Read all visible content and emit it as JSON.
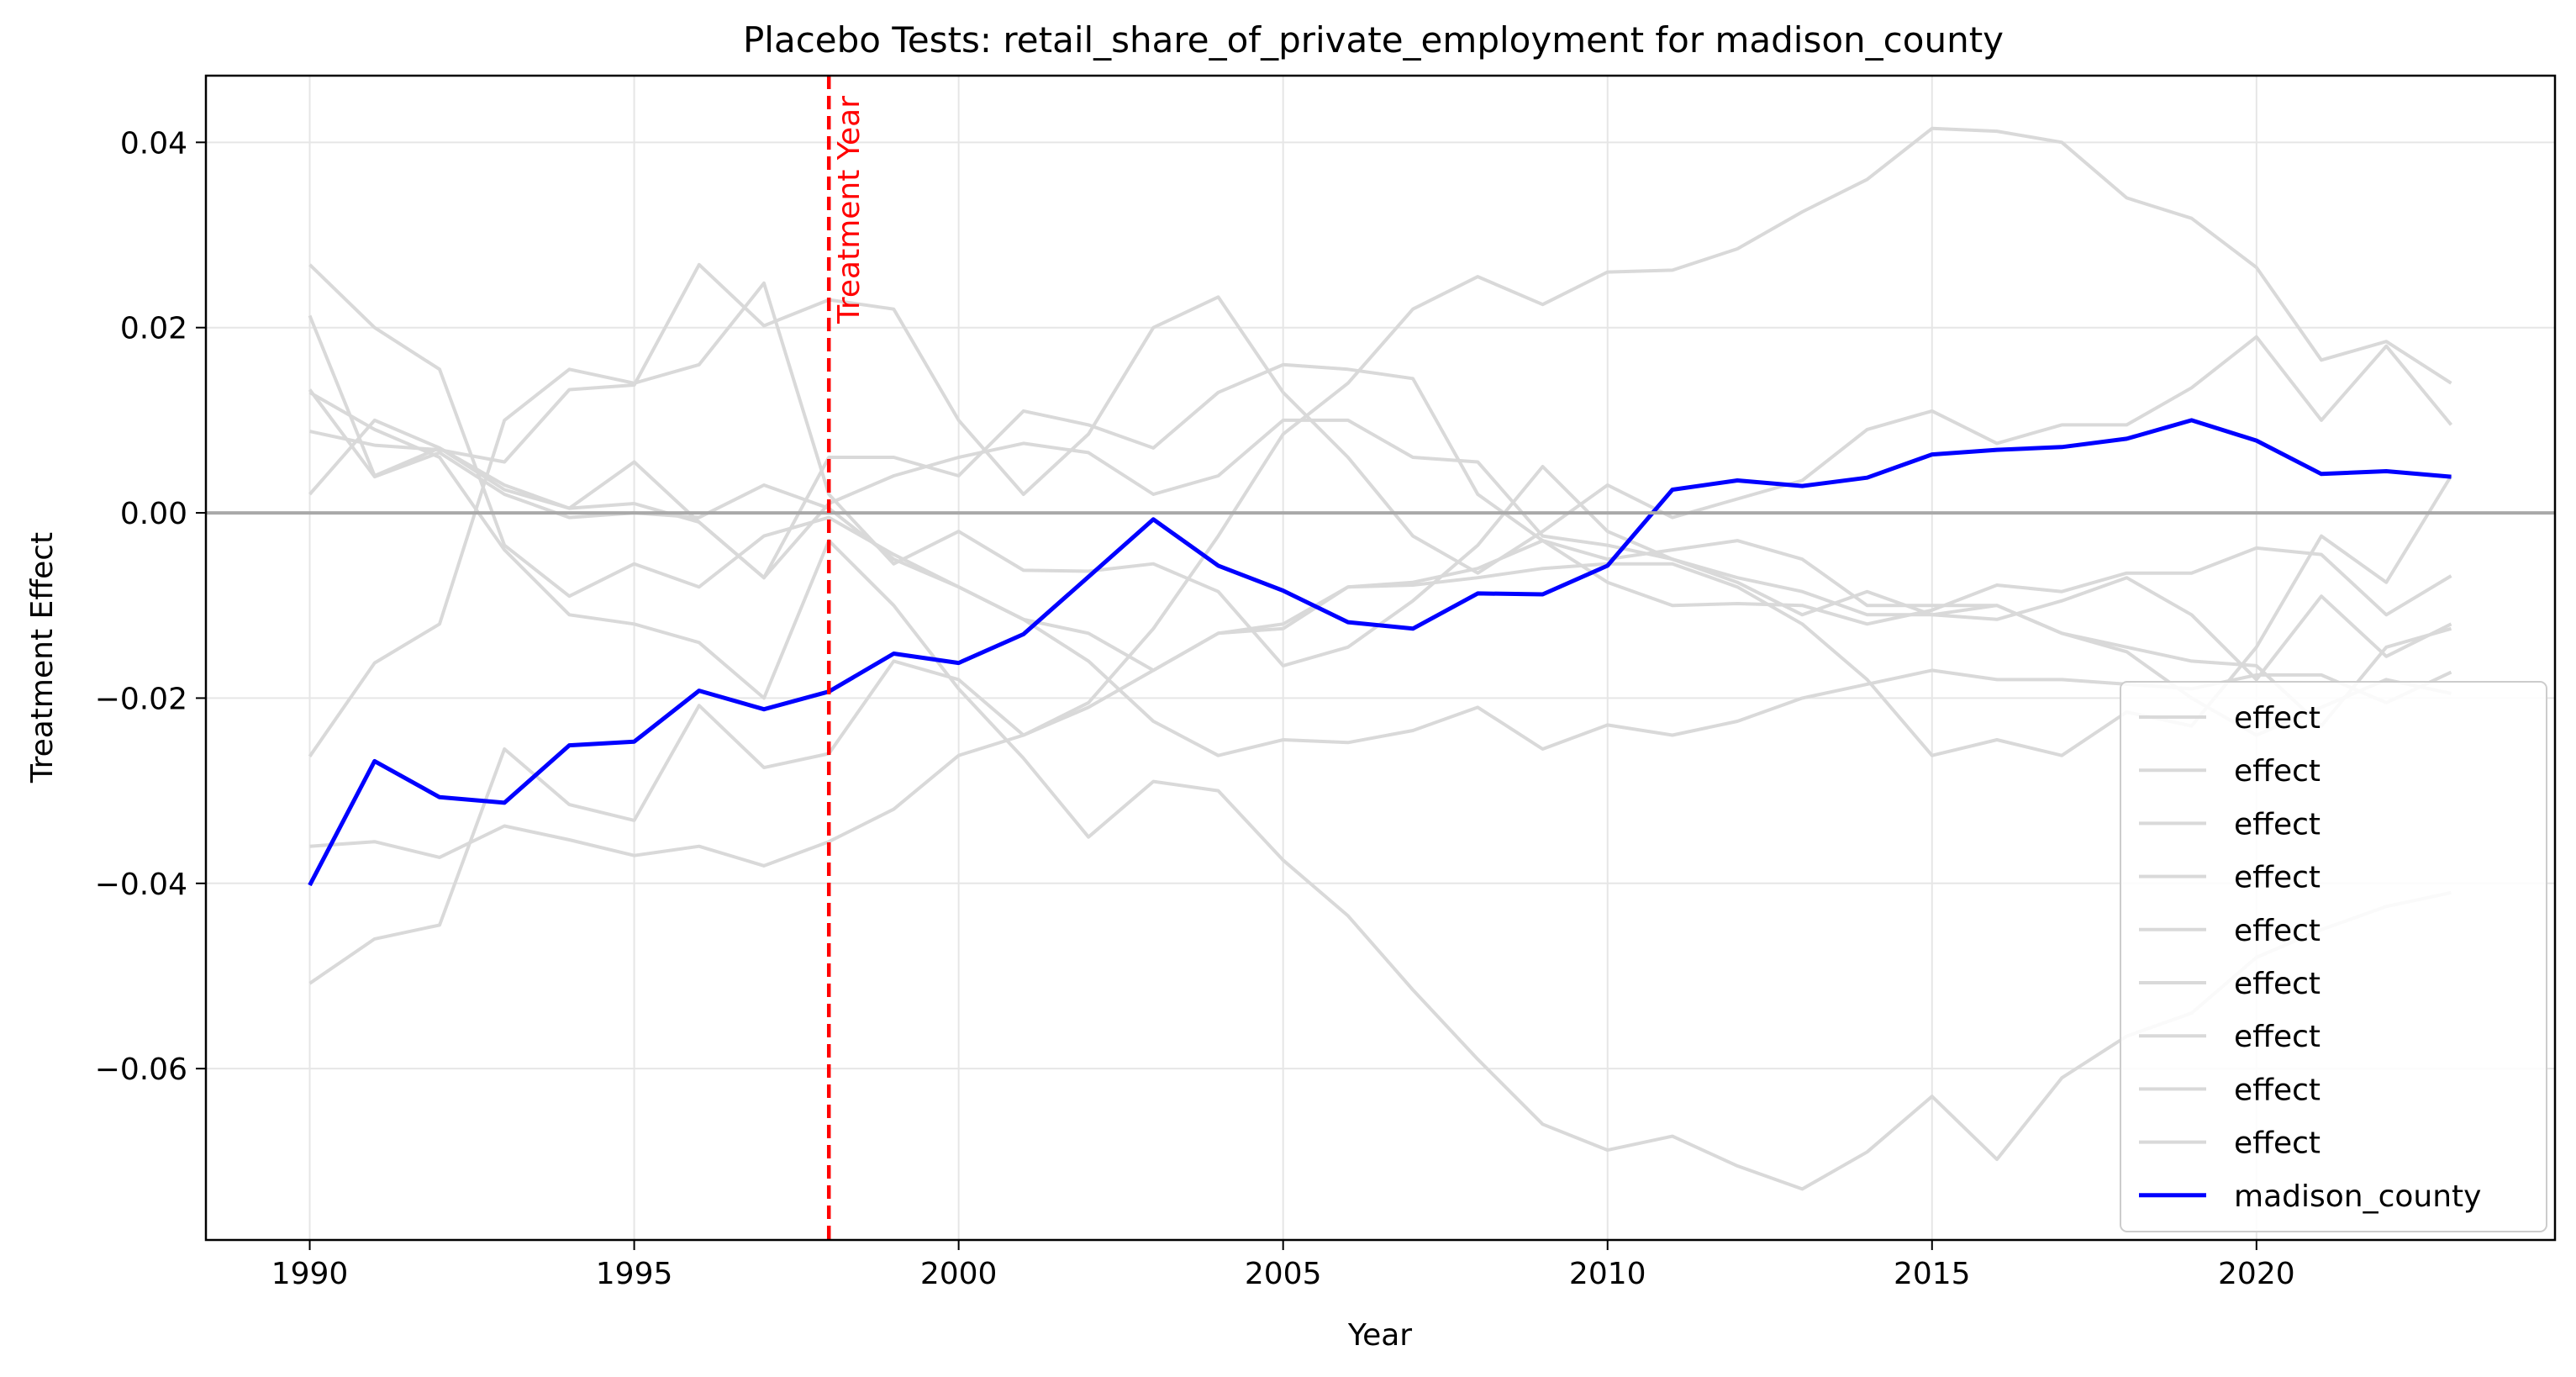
{
  "chart_data": {
    "type": "line",
    "title": "Placebo Tests: retail_share_of_private_employment for madison_county",
    "xlabel": "Year",
    "ylabel": "Treatment Effect",
    "xlim": [
      1988.4,
      2024.6
    ],
    "ylim": [
      -0.0785,
      0.0472
    ],
    "x_ticks": [
      1990,
      1995,
      2000,
      2005,
      2010,
      2015,
      2020
    ],
    "x_tick_labels": [
      "1990",
      "1995",
      "2000",
      "2005",
      "2010",
      "2015",
      "2020"
    ],
    "y_ticks": [
      0.04,
      0.02,
      0.0,
      -0.02,
      -0.04,
      -0.06
    ],
    "y_tick_labels": [
      "0.04",
      "0.02",
      "0.00",
      "−0.02",
      "−0.04",
      "−0.06"
    ],
    "grid": true,
    "legend_position": "lower-right",
    "zero_line": {
      "y": 0,
      "color": "#a9a9a9"
    },
    "treatment_line": {
      "x": 1998,
      "label": "Treatment Year",
      "color": "#ff0000"
    },
    "x": [
      1990,
      1991,
      1992,
      1993,
      1994,
      1995,
      1996,
      1997,
      1998,
      1999,
      2000,
      2001,
      2002,
      2003,
      2004,
      2005,
      2006,
      2007,
      2008,
      2009,
      2010,
      2011,
      2012,
      2013,
      2014,
      2015,
      2016,
      2017,
      2018,
      2019,
      2020,
      2021,
      2022,
      2023
    ],
    "series": [
      {
        "name": "effect",
        "color": "#d9d9d9",
        "values": [
          0.0133,
          0.0039,
          0.0065,
          0.002,
          -0.0005,
          0.0,
          -0.0005,
          0.003,
          0.0005,
          -0.005,
          -0.008,
          -0.0115,
          -0.016,
          -0.0225,
          -0.0262,
          -0.0245,
          -0.0248,
          -0.0235,
          -0.021,
          -0.0255,
          -0.0229,
          -0.024,
          -0.0225,
          -0.02,
          -0.0185,
          -0.017,
          -0.018,
          -0.018,
          -0.0185,
          -0.019,
          -0.0175,
          -0.0175,
          -0.0205,
          -0.0172
        ]
      },
      {
        "name": "effect",
        "color": "#d9d9d9",
        "values": [
          0.0268,
          0.02,
          0.0155,
          -0.0035,
          -0.009,
          -0.0055,
          -0.008,
          -0.0025,
          -0.0005,
          -0.0045,
          -0.008,
          -0.0115,
          -0.013,
          -0.017,
          -0.013,
          -0.012,
          -0.008,
          -0.0075,
          -0.006,
          -0.003,
          -0.0075,
          -0.01,
          -0.0098,
          -0.01,
          -0.012,
          -0.0105,
          -0.0078,
          -0.0085,
          -0.0065,
          -0.0065,
          -0.0038,
          -0.0045,
          -0.011,
          -0.0068
        ]
      },
      {
        "name": "effect",
        "color": "#d9d9d9",
        "values": [
          0.0213,
          0.004,
          0.007,
          0.003,
          0.0005,
          0.001,
          -0.001,
          -0.007,
          0.001,
          0.004,
          0.006,
          0.0075,
          0.0065,
          0.002,
          0.004,
          0.01,
          0.01,
          0.006,
          0.0055,
          -0.0025,
          -0.0035,
          -0.005,
          -0.007,
          -0.0085,
          -0.011,
          -0.011,
          -0.01,
          -0.013,
          -0.0145,
          -0.016,
          -0.0165,
          -0.023,
          -0.0145,
          -0.0125
        ]
      },
      {
        "name": "effect",
        "color": "#d9d9d9",
        "values": [
          -0.0263,
          -0.0162,
          -0.012,
          0.01,
          0.0155,
          0.014,
          0.016,
          0.0248,
          0.002,
          -0.0055,
          -0.002,
          -0.0062,
          -0.0063,
          -0.0055,
          -0.0085,
          -0.0165,
          -0.0145,
          -0.0095,
          -0.0035,
          0.005,
          -0.002,
          -0.005,
          -0.0075,
          -0.011,
          -0.0085,
          -0.011,
          -0.0115,
          -0.0095,
          -0.007,
          -0.011,
          -0.018,
          -0.009,
          -0.0155,
          -0.012
        ]
      },
      {
        "name": "effect",
        "color": "#d9d9d9",
        "values": [
          0.0088,
          0.0073,
          0.0068,
          0.0055,
          0.0133,
          0.0138,
          0.0268,
          0.0202,
          0.023,
          0.022,
          0.01,
          0.002,
          0.0085,
          0.02,
          0.0233,
          0.013,
          0.006,
          -0.0025,
          -0.0065,
          -0.002,
          0.003,
          -0.0005,
          0.0015,
          0.0035,
          0.009,
          0.011,
          0.0075,
          0.0095,
          0.0095,
          0.0135,
          0.019,
          0.01,
          0.018,
          0.0095
        ]
      },
      {
        "name": "effect",
        "color": "#d9d9d9",
        "values": [
          -0.036,
          -0.0355,
          -0.0372,
          -0.0338,
          -0.0353,
          -0.037,
          -0.036,
          -0.0381,
          -0.0355,
          -0.032,
          -0.0262,
          -0.024,
          -0.021,
          -0.017,
          -0.013,
          -0.0125,
          -0.008,
          -0.0078,
          -0.007,
          -0.006,
          -0.0055,
          -0.0055,
          -0.008,
          -0.012,
          -0.018,
          -0.0262,
          -0.0245,
          -0.0262,
          -0.0215,
          -0.023,
          -0.0145,
          -0.0025,
          -0.0075,
          0.004
        ]
      },
      {
        "name": "effect",
        "color": "#d9d9d9",
        "values": [
          0.002,
          0.01,
          0.007,
          0.0025,
          0.0005,
          0.0055,
          -0.001,
          -0.007,
          0.006,
          0.006,
          0.004,
          0.011,
          0.0095,
          0.007,
          0.013,
          0.016,
          0.0155,
          0.0145,
          0.002,
          -0.003,
          -0.005,
          -0.004,
          -0.003,
          -0.005,
          -0.01,
          -0.01,
          -0.01,
          -0.013,
          -0.015,
          -0.02,
          -0.024,
          -0.021,
          -0.018,
          -0.0195
        ]
      },
      {
        "name": "effect",
        "color": "#d9d9d9",
        "values": [
          0.013,
          0.009,
          0.006,
          -0.004,
          -0.011,
          -0.012,
          -0.014,
          -0.02,
          -0.003,
          -0.01,
          -0.019,
          -0.0265,
          -0.035,
          -0.029,
          -0.03,
          -0.0375,
          -0.0435,
          -0.0515,
          -0.059,
          -0.066,
          -0.0688,
          -0.0673,
          -0.0705,
          -0.073,
          -0.069,
          -0.063,
          -0.0698,
          -0.061,
          -0.0565,
          -0.054,
          -0.048,
          -0.045,
          -0.0425,
          -0.041
        ]
      },
      {
        "name": "effect",
        "color": "#d9d9d9",
        "values": [
          -0.0508,
          -0.046,
          -0.0445,
          -0.0255,
          -0.0315,
          -0.0332,
          -0.0208,
          -0.0275,
          -0.026,
          -0.016,
          -0.018,
          -0.024,
          -0.0205,
          -0.0125,
          -0.0025,
          0.0085,
          0.014,
          0.022,
          0.0255,
          0.0225,
          0.026,
          0.0262,
          0.0285,
          0.0325,
          0.036,
          0.0415,
          0.0412,
          0.04,
          0.034,
          0.0318,
          0.0265,
          0.0165,
          0.0185,
          0.014
        ]
      },
      {
        "name": "madison_county",
        "color": "#0000ff",
        "values": [
          -0.0402,
          -0.0268,
          -0.0307,
          -0.0313,
          -0.0251,
          -0.0247,
          -0.0192,
          -0.0212,
          -0.0193,
          -0.0152,
          -0.0162,
          -0.0131,
          -0.0069,
          -0.0007,
          -0.0057,
          -0.0084,
          -0.0118,
          -0.0125,
          -0.0087,
          -0.0088,
          -0.0057,
          0.0025,
          0.0035,
          0.0029,
          0.0038,
          0.0063,
          0.0068,
          0.0071,
          0.008,
          0.01,
          0.0078,
          0.0042,
          0.0045,
          0.0039
        ]
      }
    ]
  }
}
